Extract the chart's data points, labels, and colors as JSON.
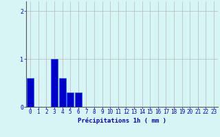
{
  "values": [
    0.6,
    0.0,
    0.0,
    1.0,
    0.6,
    0.3,
    0.3,
    0.0,
    0.0,
    0.0,
    0.0,
    0.0,
    0.0,
    0.0,
    0.0,
    0.0,
    0.0,
    0.0,
    0.0,
    0.0,
    0.0,
    0.0,
    0.0,
    0.0
  ],
  "n_bars": 24,
  "bar_color": "#0000cc",
  "bar_edge_color": "#0055ff",
  "background_color": "#d8f5f5",
  "grid_color": "#b8b8b8",
  "axis_color": "#555555",
  "xlabel": "Précipitations 1h ( mm )",
  "xlabel_fontsize": 6.5,
  "yticks": [
    0,
    1,
    2
  ],
  "ylim": [
    0,
    2.2
  ],
  "xlim": [
    -0.5,
    23.5
  ],
  "tick_fontsize": 5.5,
  "tick_color": "#0000cc",
  "xlabel_bold": true
}
